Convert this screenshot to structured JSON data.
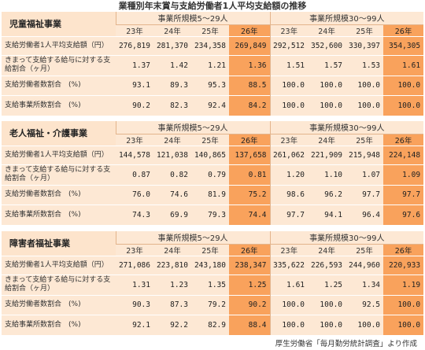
{
  "title": "業種別年末賞与支給労働者1人平均支給額の推移",
  "group_a": "事業所規模5～29人",
  "group_b": "事業所規模30～99人",
  "years": [
    "23年",
    "24年",
    "25年",
    "26年"
  ],
  "row_labels": [
    "支給労働者1人平均支給額（円）",
    "きまって支給する給与に対する支給割合（ヶ月）",
    "支給労働者数割合　(%)",
    "支給事業所数割合　(%)"
  ],
  "sections": [
    {
      "title": "児童福祉事業",
      "rows": [
        [
          "276,819",
          "281,370",
          "234,358",
          "269,849",
          "292,512",
          "352,600",
          "330,397",
          "354,305"
        ],
        [
          "1.37",
          "1.42",
          "1.21",
          "1.36",
          "1.51",
          "1.57",
          "1.53",
          "1.61"
        ],
        [
          "93.1",
          "89.3",
          "95.3",
          "88.5",
          "100.0",
          "100.0",
          "100.0",
          "100.0"
        ],
        [
          "90.2",
          "82.3",
          "92.4",
          "84.2",
          "100.0",
          "100.0",
          "100.0",
          "100.0"
        ]
      ]
    },
    {
      "title": "老人福祉・介護事業",
      "rows": [
        [
          "144,578",
          "121,038",
          "140,865",
          "137,658",
          "261,062",
          "221,909",
          "215,948",
          "224,148"
        ],
        [
          "0.87",
          "0.82",
          "0.79",
          "0.81",
          "1.20",
          "1.10",
          "1.07",
          "1.09"
        ],
        [
          "76.0",
          "74.6",
          "81.9",
          "75.2",
          "98.6",
          "96.2",
          "97.7",
          "97.7"
        ],
        [
          "74.3",
          "69.9",
          "79.3",
          "74.4",
          "97.7",
          "94.1",
          "96.4",
          "97.6"
        ]
      ]
    },
    {
      "title": "障害者福祉事業",
      "rows": [
        [
          "271,086",
          "223,810",
          "243,180",
          "238,347",
          "335,622",
          "226,593",
          "244,960",
          "220,933"
        ],
        [
          "1.31",
          "1.23",
          "1.35",
          "1.25",
          "1.61",
          "1.25",
          "1.34",
          "1.19"
        ],
        [
          "90.3",
          "87.3",
          "79.2",
          "90.2",
          "100.0",
          "100.0",
          "92.5",
          "100.0"
        ],
        [
          "92.1",
          "92.2",
          "82.9",
          "88.4",
          "100.0",
          "100.0",
          "100.0",
          "100.0"
        ]
      ]
    }
  ],
  "source": "厚生労働省「毎月勤労統計調査」より作成",
  "colors": {
    "cell_bg": "#fde8d4",
    "highlight": "#f9a25c",
    "section_title_bg": "#fde4cc"
  }
}
